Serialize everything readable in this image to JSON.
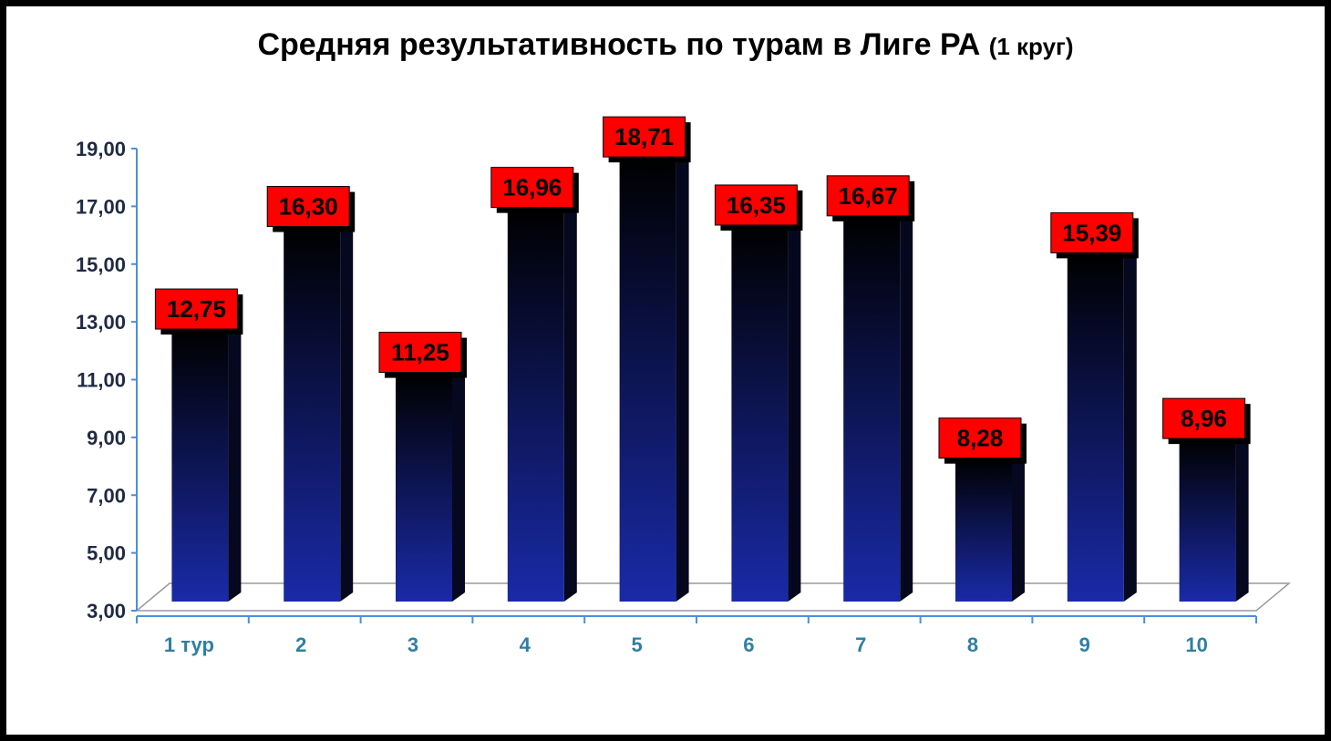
{
  "title": {
    "main": "Средняя результативность по турам в Лиге РА",
    "suffix": "(1 круг)"
  },
  "colors": {
    "bar_bottom": "#1a2aa8",
    "bar_top": "#000000",
    "label_bg": "#ff0000",
    "axis_text": "#1f2a44",
    "category_text": "#2e7fa6",
    "axis_line": "#4a90d9"
  },
  "chart_data": {
    "type": "bar",
    "title": "Средняя результативность по турам в Лиге РА (1 круг)",
    "categories": [
      "1 тур",
      "2",
      "3",
      "4",
      "5",
      "6",
      "7",
      "8",
      "9",
      "10"
    ],
    "values": [
      12.75,
      16.3,
      11.25,
      16.96,
      18.71,
      16.35,
      16.67,
      8.28,
      15.39,
      8.96
    ],
    "value_labels": [
      "12,75",
      "16,30",
      "11,25",
      "16,96",
      "18,71",
      "16,35",
      "16,67",
      "8,28",
      "15,39",
      "8,96"
    ],
    "ylim": [
      3,
      19
    ],
    "yticks": [
      "3,00",
      "5,00",
      "7,00",
      "9,00",
      "11,00",
      "13,00",
      "15,00",
      "17,00",
      "19,00"
    ],
    "xlabel": "",
    "ylabel": "",
    "grid": false,
    "legend": "none"
  }
}
